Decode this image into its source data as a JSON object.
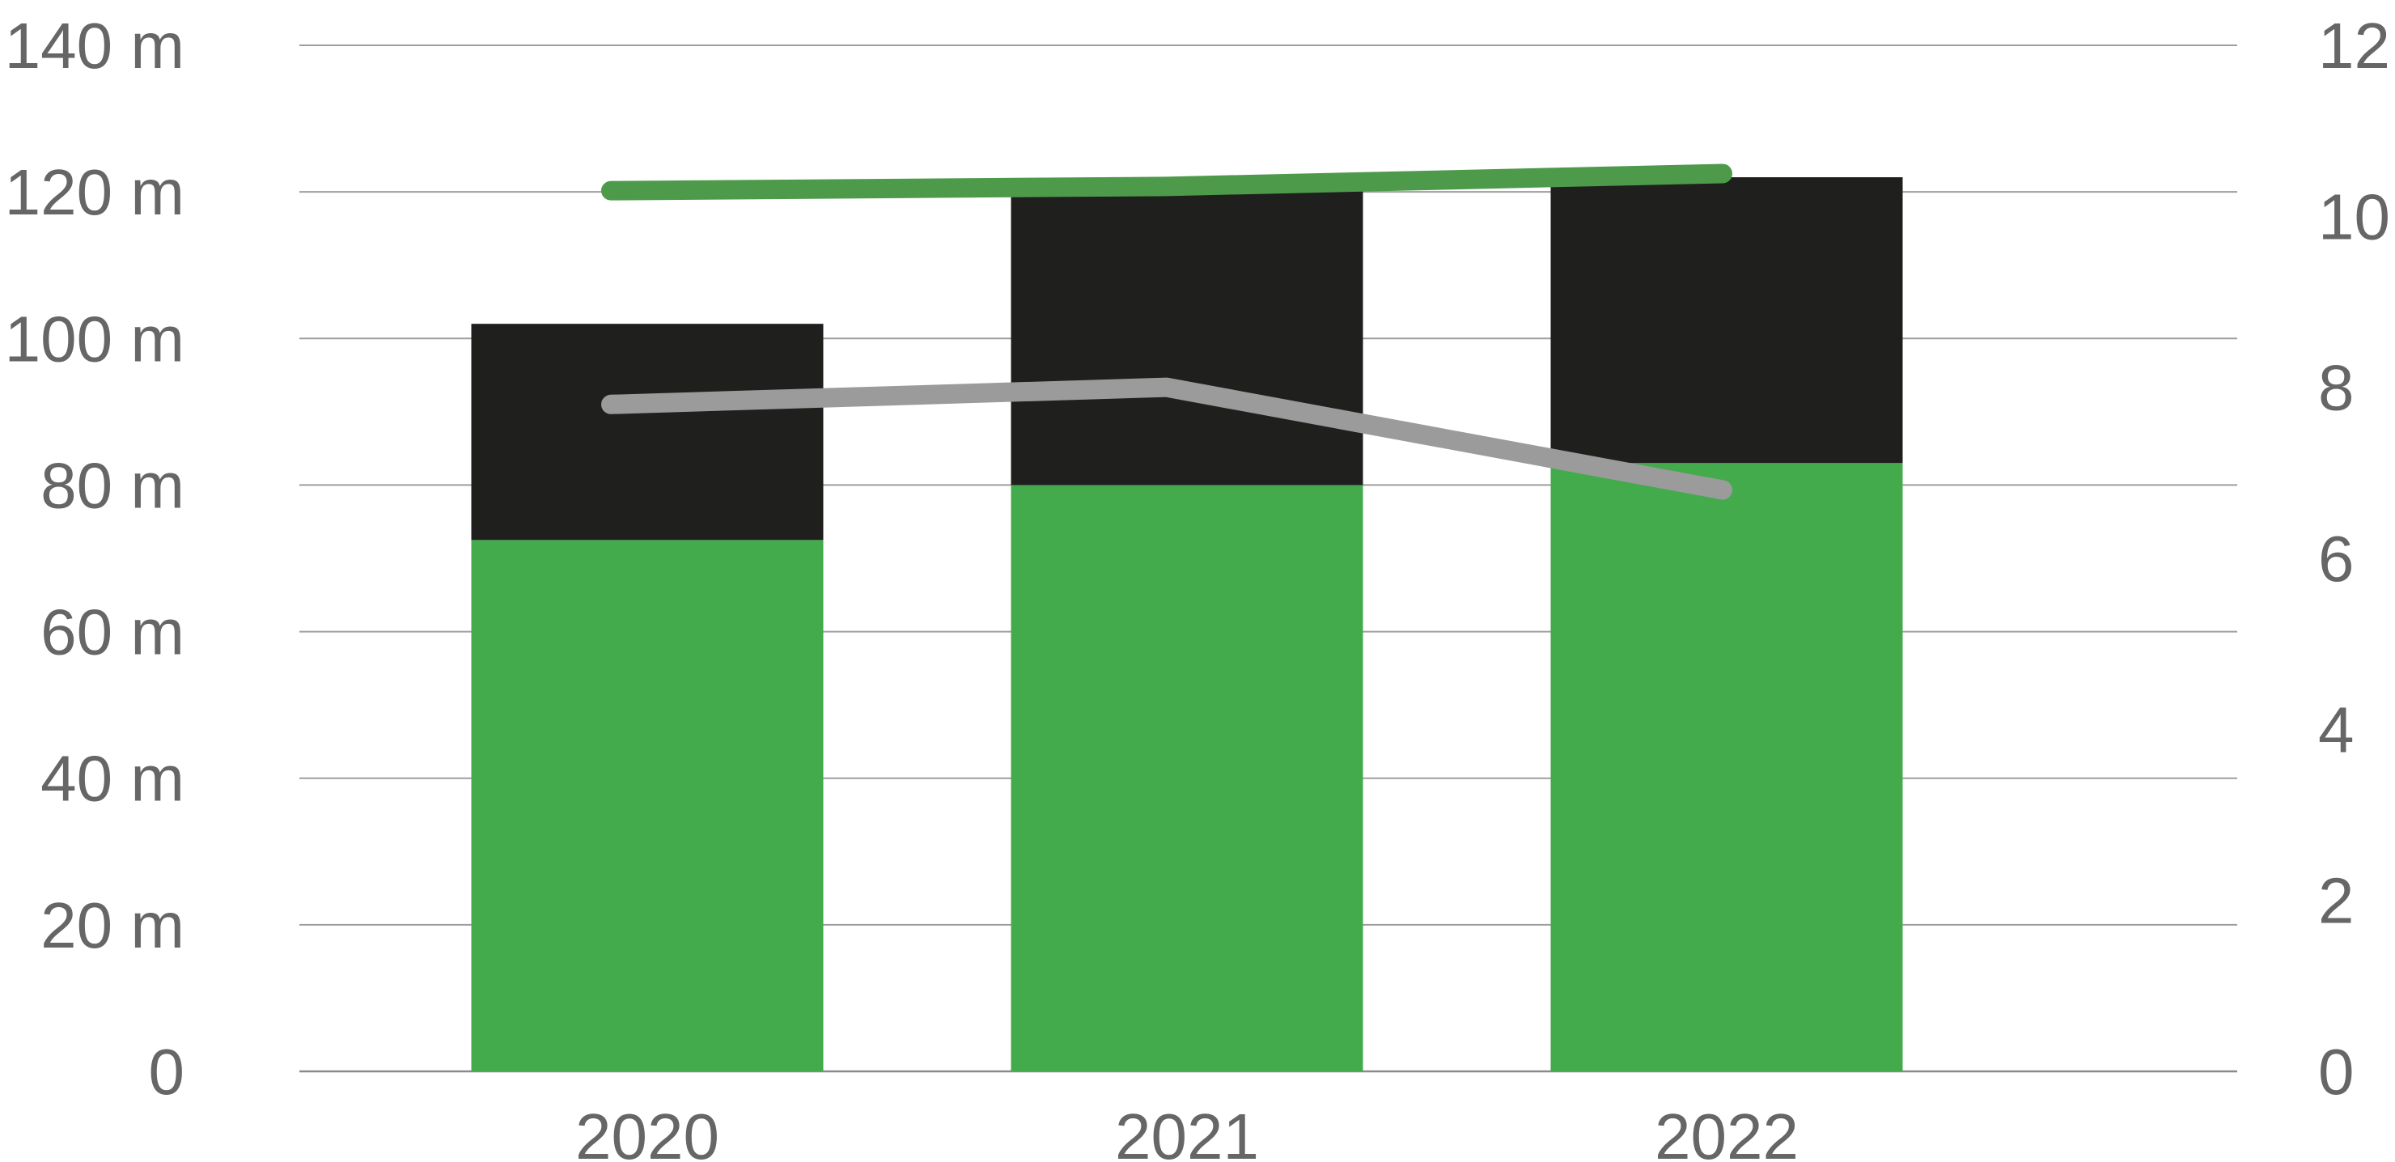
{
  "chart_data": {
    "type": "bar",
    "stacked": true,
    "categories": [
      "2020",
      "2021",
      "2022"
    ],
    "series": [
      {
        "type": "bar",
        "axis": "left",
        "color": "#43ab4c",
        "values": [
          72.5,
          80,
          83
        ]
      },
      {
        "type": "bar",
        "axis": "left",
        "color": "#1f1f1e",
        "values": [
          29.5,
          41,
          39
        ]
      },
      {
        "type": "line",
        "axis": "right",
        "color": "#4e9a4b",
        "values": [
          10.3,
          10.35,
          10.5
        ]
      },
      {
        "type": "line",
        "axis": "right",
        "color": "#9b9b9b",
        "values": [
          7.8,
          8,
          6.8
        ]
      }
    ],
    "y_left": {
      "range": [
        0,
        140
      ],
      "ticks": [
        0,
        20,
        40,
        60,
        80,
        100,
        120,
        140
      ],
      "tick_labels": [
        "0",
        "20 m",
        "40 m",
        "60 m",
        "80 m",
        "100 m",
        "120 m",
        "140 m"
      ]
    },
    "y_right": {
      "range": [
        0,
        12
      ],
      "ticks": [
        0,
        2,
        4,
        6,
        8,
        10,
        12
      ],
      "tick_labels": [
        "0",
        "2",
        "4",
        "6",
        "8",
        "10",
        "12"
      ]
    },
    "grid": true,
    "legend": "none",
    "title": "",
    "xlabel": "",
    "ylabel": ""
  }
}
